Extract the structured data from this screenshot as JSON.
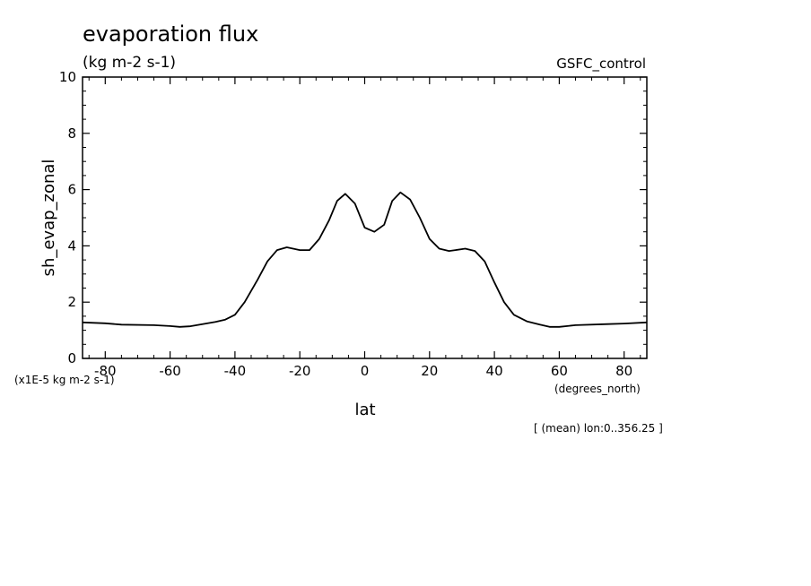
{
  "chart_data": {
    "type": "line",
    "title": "evaporation flux",
    "subtitle": "(kg m-2 s-1)",
    "dataset_label": "GSFC_control",
    "xlabel": "lat",
    "x_units": "(degrees_north)",
    "ylabel": "sh_evap_zonal",
    "y_units": "(x1E-5 kg m-2 s-1)",
    "footnote": "[ (mean) lon:0..356.25 ]",
    "xlim": [
      -87,
      87
    ],
    "ylim": [
      0,
      10
    ],
    "x_ticks": [
      -80,
      -60,
      -40,
      -20,
      0,
      20,
      40,
      60,
      80
    ],
    "x_tick_labels": [
      "-80",
      "-60",
      "-40",
      "-20",
      "0",
      "20",
      "40",
      "60",
      "80"
    ],
    "y_ticks": [
      0,
      2,
      4,
      6,
      8,
      10
    ],
    "y_tick_labels": [
      "0",
      "2",
      "4",
      "6",
      "8",
      "10"
    ],
    "grid": false,
    "series": [
      {
        "color": "#000000",
        "x": [
          -87,
          -80,
          -75,
          -65,
          -60,
          -57,
          -54,
          -50,
          -46,
          -43,
          -40,
          -37,
          -33,
          -30,
          -27,
          -24,
          -20,
          -17,
          -14,
          -11,
          -8.5,
          -6,
          -3,
          0,
          3,
          6,
          8.5,
          11,
          14,
          17,
          20,
          23,
          26,
          28,
          31,
          34,
          37,
          40,
          43,
          46,
          50,
          54,
          57,
          60,
          65,
          75,
          80,
          87
        ],
        "y": [
          1.28,
          1.25,
          1.2,
          1.18,
          1.15,
          1.12,
          1.14,
          1.22,
          1.3,
          1.38,
          1.55,
          2.0,
          2.8,
          3.45,
          3.85,
          3.95,
          3.85,
          3.85,
          4.25,
          4.9,
          5.6,
          5.85,
          5.5,
          4.65,
          4.5,
          4.75,
          5.6,
          5.9,
          5.65,
          5.0,
          4.25,
          3.9,
          3.82,
          3.85,
          3.9,
          3.82,
          3.45,
          2.7,
          2.0,
          1.55,
          1.32,
          1.2,
          1.12,
          1.12,
          1.18,
          1.22,
          1.24,
          1.28
        ]
      }
    ]
  }
}
